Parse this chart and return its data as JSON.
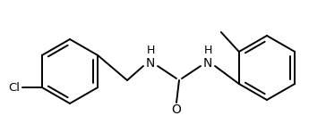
{
  "background_color": "#ffffff",
  "line_color": "#000000",
  "line_width": 1.4,
  "figsize": [
    3.64,
    1.48
  ],
  "dpi": 100,
  "xlim": [
    0,
    364
  ],
  "ylim": [
    0,
    148
  ]
}
